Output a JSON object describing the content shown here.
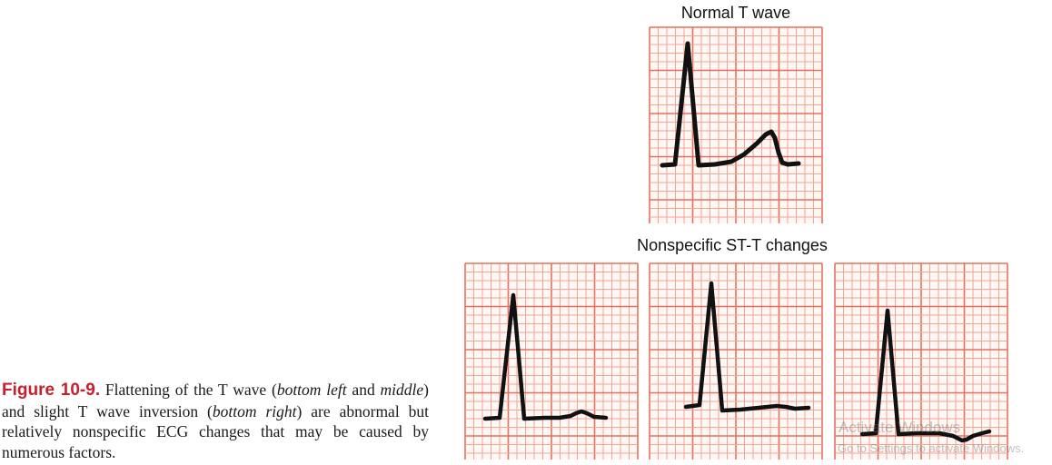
{
  "titles": {
    "top": "Normal T wave",
    "bottom": "Nonspecific ST-T changes"
  },
  "caption": {
    "label": "Figure 10-9.",
    "parts": [
      " Flattening of the T wave (",
      "bottom left",
      " and ",
      "middle",
      ") and slight T wave inversion (",
      "bottom right",
      ") are abnormal but relatively nonspecific ECG changes that may be caused by numerous factors."
    ]
  },
  "watermark": {
    "title": "Activate Windows",
    "subtitle": "Go to Settings to activate Windows."
  },
  "colors": {
    "grid_minor": "#f0a595",
    "grid_major": "#e6705c",
    "trace": "#111111",
    "caption_label": "#c8202a"
  }
}
